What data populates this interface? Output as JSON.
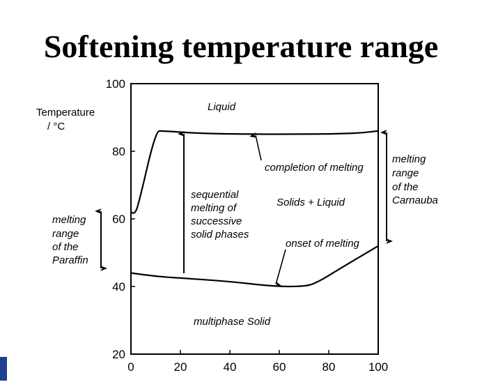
{
  "slide": {
    "title": "Softening temperature range"
  },
  "chart_data": {
    "type": "line",
    "title": "",
    "ylabel": "Temperature / °C",
    "xlabel": "",
    "xlim": [
      0,
      100
    ],
    "ylim": [
      20,
      100
    ],
    "xticks": [
      "0",
      "20",
      "40",
      "60",
      "80",
      "100"
    ],
    "yticks": [
      "20",
      "40",
      "60",
      "80",
      "100"
    ],
    "grid": false,
    "series": [
      {
        "role": "completion of melting curve",
        "x": [
          0,
          1.5,
          3,
          10,
          13,
          30,
          60,
          90,
          100
        ],
        "y": [
          62,
          61.5,
          64,
          86,
          86,
          85.2,
          85,
          85.2,
          86
        ]
      },
      {
        "role": "onset of melting curve",
        "x": [
          0,
          10,
          20,
          40,
          58,
          70,
          75,
          85,
          100
        ],
        "y": [
          44,
          43,
          42.5,
          41.5,
          40,
          40,
          41,
          45.5,
          52
        ]
      }
    ],
    "annotations": {
      "liquid": "Liquid",
      "completion": "completion of melting",
      "solids_liquid": "Solids + Liquid",
      "sequential": [
        "sequential",
        "melting of",
        "successive",
        "solid phases"
      ],
      "onset": "onset of melting",
      "multiphase": "multiphase Solid",
      "carnauba": [
        "melting",
        "range",
        "of the",
        "Carnauba"
      ],
      "paraffin": [
        "melting",
        "range",
        "of the",
        "Paraffin"
      ],
      "ylabel_lines": [
        "Temperature",
        "/ °C"
      ]
    }
  },
  "colors": {
    "logo": "#1f3f8f"
  }
}
